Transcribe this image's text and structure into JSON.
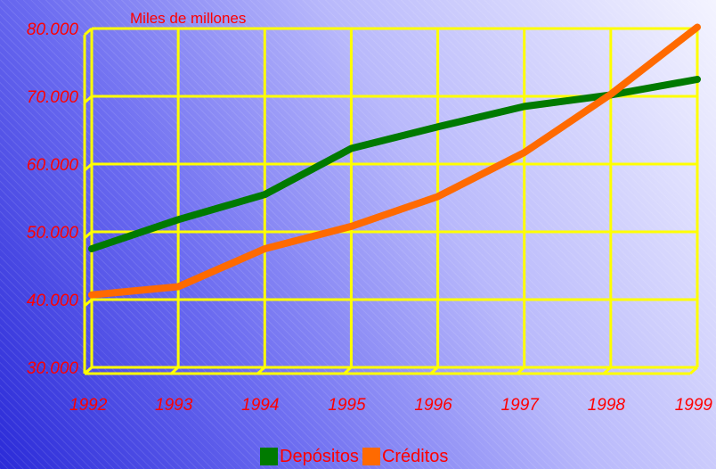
{
  "chart_data": {
    "type": "line",
    "unit_label": "Miles de millones",
    "x": [
      "1992",
      "1993",
      "1994",
      "1995",
      "1996",
      "1997",
      "1998",
      "1999"
    ],
    "y_ticks": [
      "30.000",
      "40.000",
      "50.000",
      "60.000",
      "70.000",
      "80.000"
    ],
    "ylim": [
      30000,
      80000
    ],
    "grid": true,
    "legend_position": "bottom",
    "series": [
      {
        "name": "Depósitos",
        "color": "#007a00",
        "values": [
          47500,
          51800,
          55500,
          62300,
          65500,
          68500,
          70200,
          72500
        ]
      },
      {
        "name": "Créditos",
        "color": "#ff6a00",
        "values": [
          40700,
          41900,
          47500,
          50800,
          55200,
          61700,
          70300,
          80200
        ]
      }
    ],
    "colors": {
      "grid": "#ffff00",
      "labels": "#ff0000"
    }
  }
}
